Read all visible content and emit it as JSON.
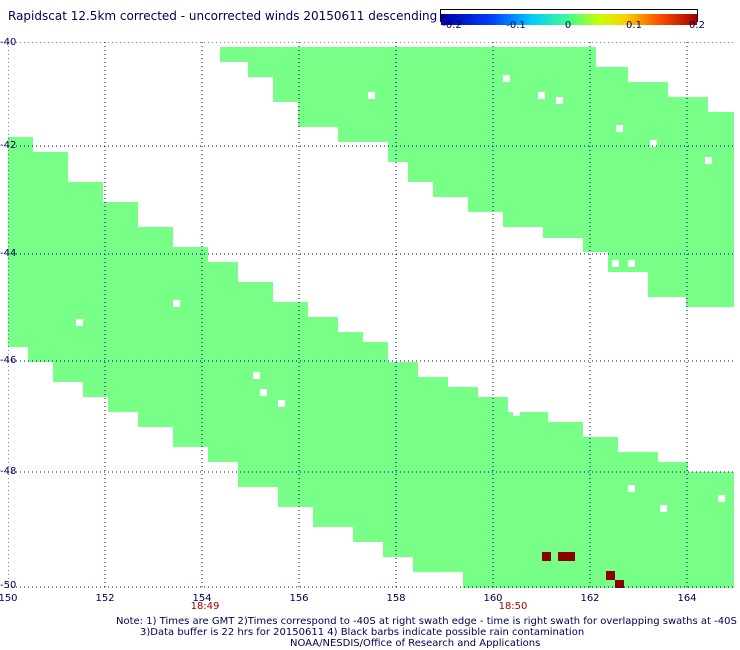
{
  "title": "Rapidscat 12.5km corrected - uncorrected winds 20150611 descending",
  "colorbar": {
    "ticks": [
      "-0.2",
      "-0.1",
      "0",
      "0.1",
      "0.2"
    ],
    "colors": [
      "#0000a0",
      "#0040ff",
      "#00c8ff",
      "#40ff90",
      "#c8ff00",
      "#ffd000",
      "#ff5000",
      "#a00000"
    ]
  },
  "axes": {
    "y_labels": [
      "-40",
      "-42",
      "-44",
      "-46",
      "-48",
      "-50"
    ],
    "x_labels": [
      "150",
      "152",
      "154",
      "156",
      "158",
      "160",
      "162",
      "164"
    ],
    "xlim": [
      150,
      165
    ],
    "ylim": [
      -50,
      -40
    ]
  },
  "times": [
    {
      "label": "18:49",
      "lon": 154
    },
    {
      "label": "18:50",
      "lon": 160.4
    }
  ],
  "notes": {
    "line1": "Note: 1) Times are GMT 2)Times correspond to -40S at right swath edge - time is right swath for overlapping swaths at -40S",
    "line2": "3)Data buffer is 22 hrs for 20150611 4) Black barbs indicate possible rain contamination",
    "line3": "NOAA/NESDIS/Office of Research and Applications"
  },
  "colors": {
    "swath": "#77ff88",
    "grid": "#000066",
    "rain": "#8b0000"
  }
}
